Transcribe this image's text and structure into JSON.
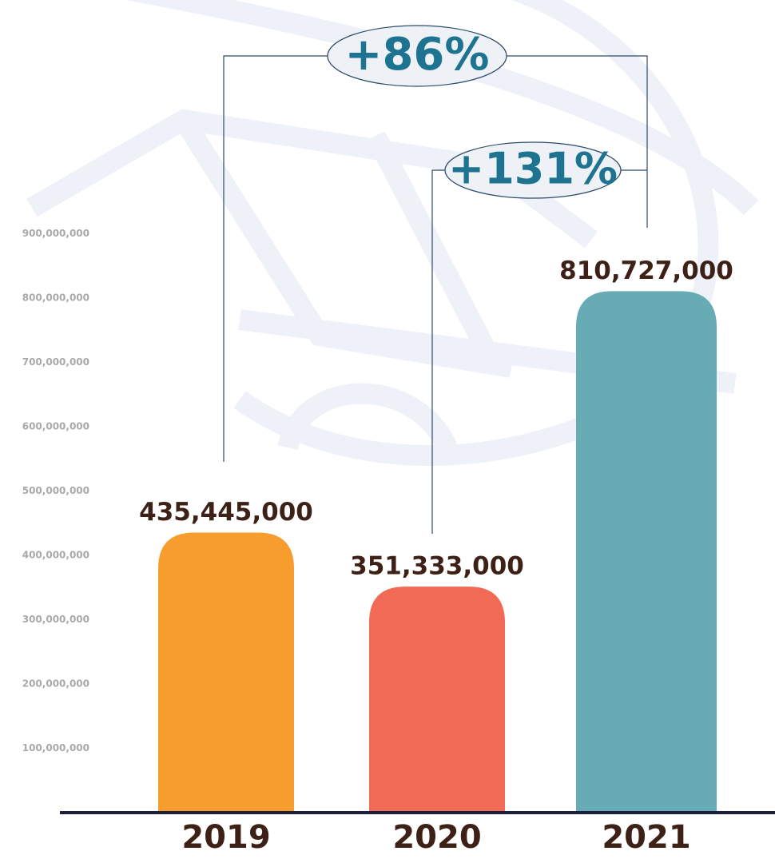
{
  "chart_data": {
    "type": "bar",
    "categories": [
      "2019",
      "2020",
      "2021"
    ],
    "values": [
      435445000,
      351333000,
      810727000
    ],
    "value_labels": [
      "435,445,000",
      "351,333,000",
      "810,727,000"
    ],
    "colors": [
      "#f79d2e",
      "#f06a56",
      "#67abb5"
    ],
    "ylim": [
      0,
      1000000000
    ],
    "yticks": [
      {
        "value": 100000000,
        "label": "100,000,000"
      },
      {
        "value": 200000000,
        "label": "200,000,000"
      },
      {
        "value": 300000000,
        "label": "300,000,000"
      },
      {
        "value": 400000000,
        "label": "400,000,000"
      },
      {
        "value": 500000000,
        "label": "500,000,000"
      },
      {
        "value": 600000000,
        "label": "600,000,000"
      },
      {
        "value": 700000000,
        "label": "700,000,000"
      },
      {
        "value": 800000000,
        "label": "800,000,000"
      },
      {
        "value": 900000000,
        "label": "900,000,000"
      }
    ],
    "grid": false,
    "annotations": [
      "+86%",
      "+131%"
    ]
  }
}
